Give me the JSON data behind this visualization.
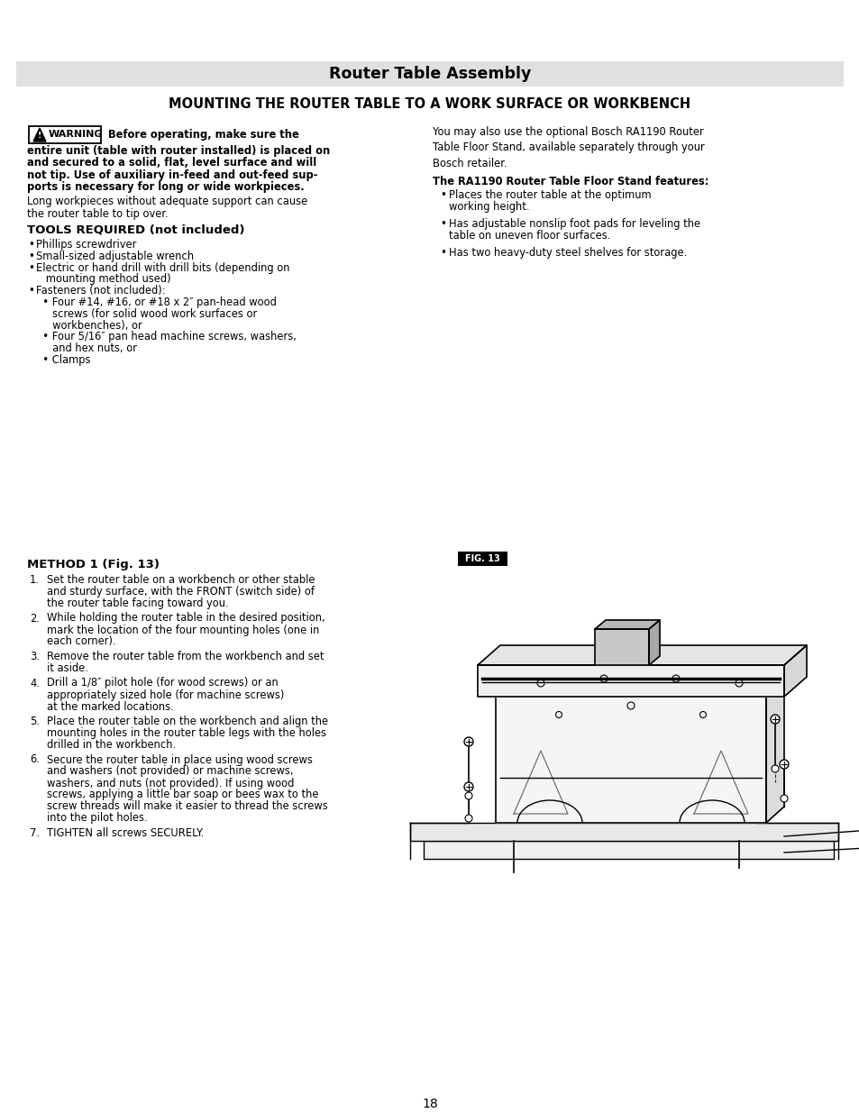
{
  "page_bg": "#ffffff",
  "header_bg": "#e0e0e0",
  "header_text": "Router Table Assembly",
  "section_title": "MOUNTING THE ROUTER TABLE TO A WORK SURFACE OR WORKBENCH",
  "right_col_text1": "You may also use the optional Bosch RA1190 Router\nTable Floor Stand, available separately through your\nBosch retailer.",
  "right_col_bold": "The RA1190 Router Table Floor Stand features:",
  "right_col_bullets": [
    "Places the router table at the optimum\nworking height.",
    "Has adjustable nonslip foot pads for leveling the\ntable on uneven floor surfaces.",
    "Has two heavy-duty steel shelves for storage."
  ],
  "method_title": "METHOD 1 (Fig. 13)",
  "method_steps": [
    "Set the router table on a workbench or other stable\nand sturdy surface, with the FRONT (switch side) of\nthe router table facing toward you.",
    "While holding the router table in the desired position,\nmark the location of the four mounting holes (one in\neach corner).",
    "Remove the router table from the workbench and set\nit aside.",
    "Drill a 1/8″ pilot hole (for wood screws) or an\nappropriately sized hole (for machine screws)\nat the marked locations.",
    "Place the router table on the workbench and align the\nmounting holes in the router table legs with the holes\ndrilled in the workbench.",
    "Secure the router table in place using wood screws\nand washers (not provided) or machine screws,\nwashers, and nuts (not provided). If using wood\nscrews, applying a little bar soap or bees wax to the\nscrew threads will make it easier to thread the screws\ninto the pilot holes.",
    "TIGHTEN all screws SECURELY."
  ],
  "page_number": "18"
}
